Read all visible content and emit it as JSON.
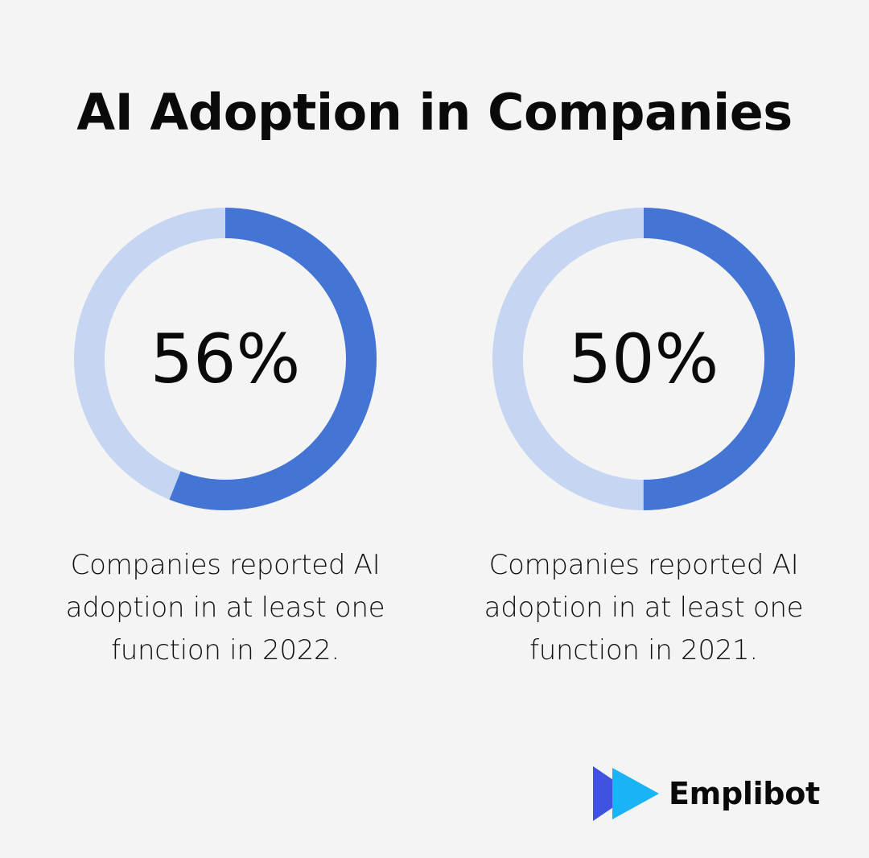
{
  "title": "AI Adoption in Companies",
  "chart_data": [
    {
      "type": "pie",
      "style": "donut",
      "value_label": "56%",
      "value": 56,
      "max": 100,
      "caption": "Companies reported AI adoption in at least one function in 2022.",
      "colors": {
        "fill": "#4575d4",
        "track": "#c5d5f2"
      }
    },
    {
      "type": "pie",
      "style": "donut",
      "value_label": "50%",
      "value": 50,
      "max": 100,
      "caption": "Companies reported AI adoption in at least one function in 2021.",
      "colors": {
        "fill": "#4575d4",
        "track": "#c5d5f2"
      }
    }
  ],
  "brand": {
    "name": "Emplibot",
    "logo_icon": "double-play-arrow-icon",
    "colors": {
      "dark": "#3f53e0",
      "light": "#1ab3f5"
    }
  }
}
